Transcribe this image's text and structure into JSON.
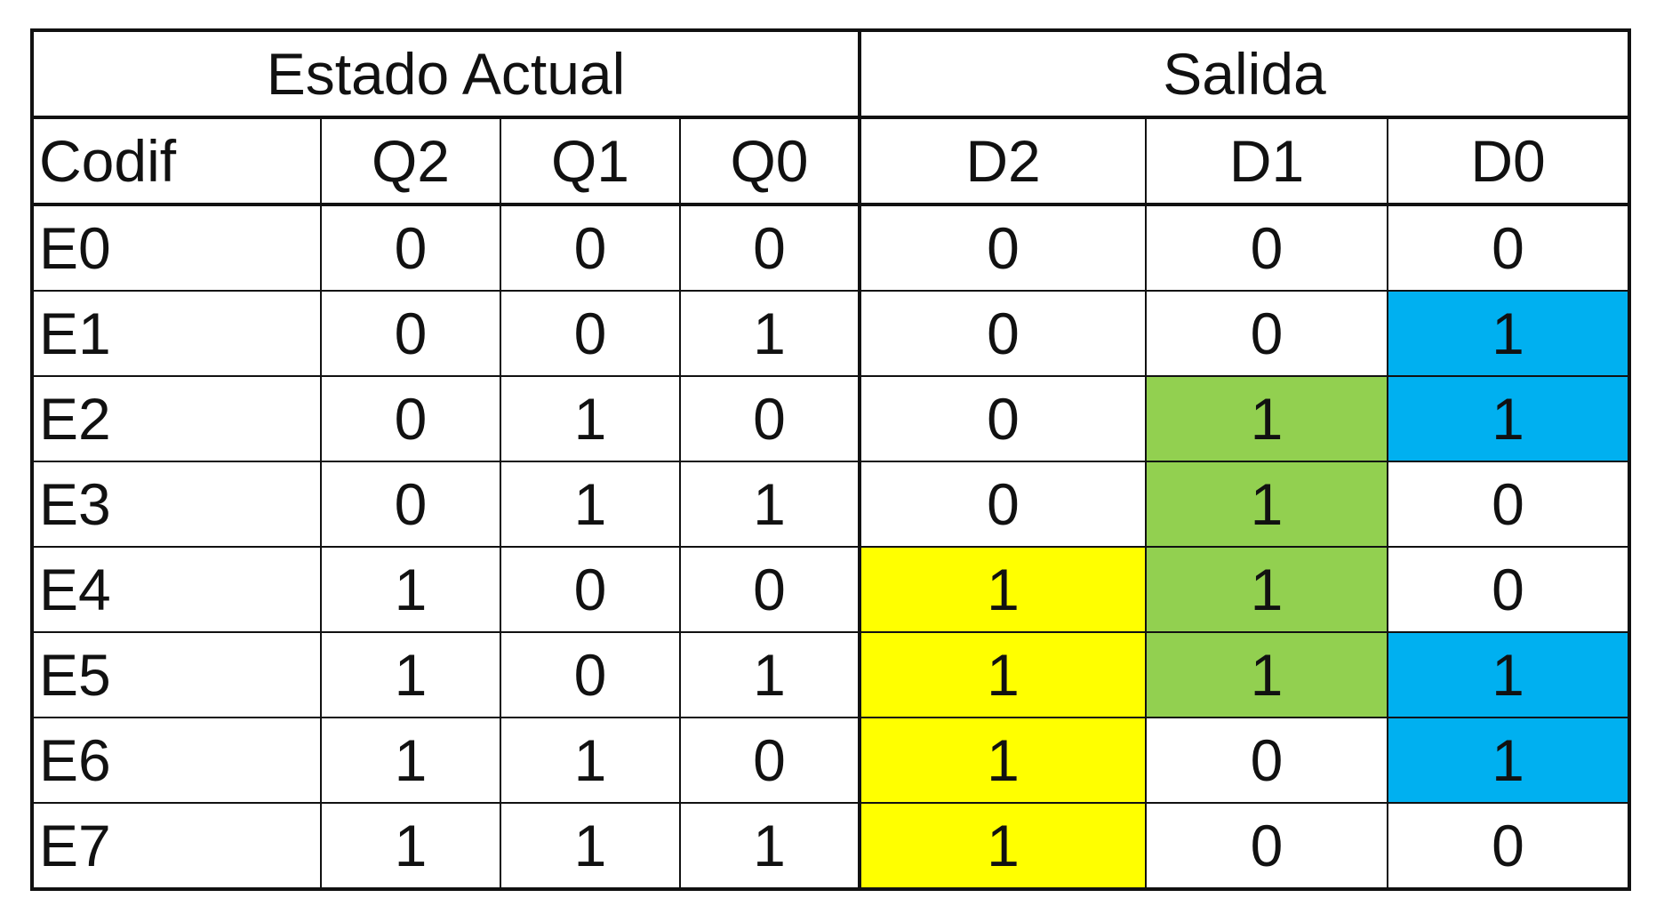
{
  "table": {
    "group_headers": {
      "state": "Estado Actual",
      "output": "Salida"
    },
    "column_headers": [
      "Codif",
      "Q2",
      "Q1",
      "Q0",
      "D2",
      "D1",
      "D0"
    ],
    "rows": [
      {
        "codif": "E0",
        "q2": "0",
        "q1": "0",
        "q0": "0",
        "d2": "0",
        "d1": "0",
        "d0": "0"
      },
      {
        "codif": "E1",
        "q2": "0",
        "q1": "0",
        "q0": "1",
        "d2": "0",
        "d1": "0",
        "d0": "1"
      },
      {
        "codif": "E2",
        "q2": "0",
        "q1": "1",
        "q0": "0",
        "d2": "0",
        "d1": "1",
        "d0": "1"
      },
      {
        "codif": "E3",
        "q2": "0",
        "q1": "1",
        "q0": "1",
        "d2": "0",
        "d1": "1",
        "d0": "0"
      },
      {
        "codif": "E4",
        "q2": "1",
        "q1": "0",
        "q0": "0",
        "d2": "1",
        "d1": "1",
        "d0": "0"
      },
      {
        "codif": "E5",
        "q2": "1",
        "q1": "0",
        "q0": "1",
        "d2": "1",
        "d1": "1",
        "d0": "1"
      },
      {
        "codif": "E6",
        "q2": "1",
        "q1": "1",
        "q0": "0",
        "d2": "1",
        "d1": "0",
        "d0": "1"
      },
      {
        "codif": "E7",
        "q2": "1",
        "q1": "1",
        "q0": "1",
        "d2": "1",
        "d1": "0",
        "d0": "0"
      }
    ]
  },
  "highlight_colors": {
    "d2": "#ffff00",
    "d1": "#92d050",
    "d0": "#00b0f0"
  }
}
